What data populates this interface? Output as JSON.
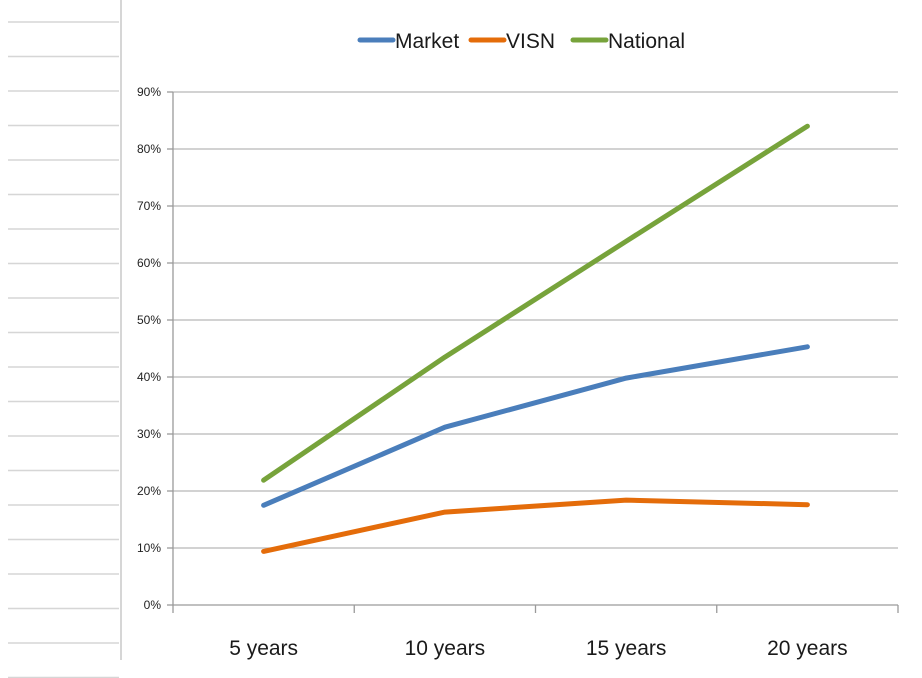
{
  "chart_data": {
    "type": "line",
    "categories": [
      "5 years",
      "10 years",
      "15 years",
      "20 years"
    ],
    "series": [
      {
        "name": "Market",
        "color": "#4a7ebb",
        "values": [
          17.5,
          31.2,
          39.8,
          45.3
        ]
      },
      {
        "name": "VISN",
        "color": "#e46c0a",
        "values": [
          9.4,
          16.3,
          18.4,
          17.6
        ]
      },
      {
        "name": "National",
        "color": "#77a33b",
        "values": [
          21.9,
          43.5,
          63.8,
          84.0
        ]
      }
    ],
    "yticks": [
      "0%",
      "10%",
      "20%",
      "30%",
      "40%",
      "50%",
      "60%",
      "70%",
      "80%",
      "90%"
    ],
    "ylim": [
      0,
      90
    ],
    "y_unit": "percent",
    "grid": true,
    "legend_position": "top-center",
    "title": "",
    "xlabel": "",
    "ylabel": ""
  }
}
